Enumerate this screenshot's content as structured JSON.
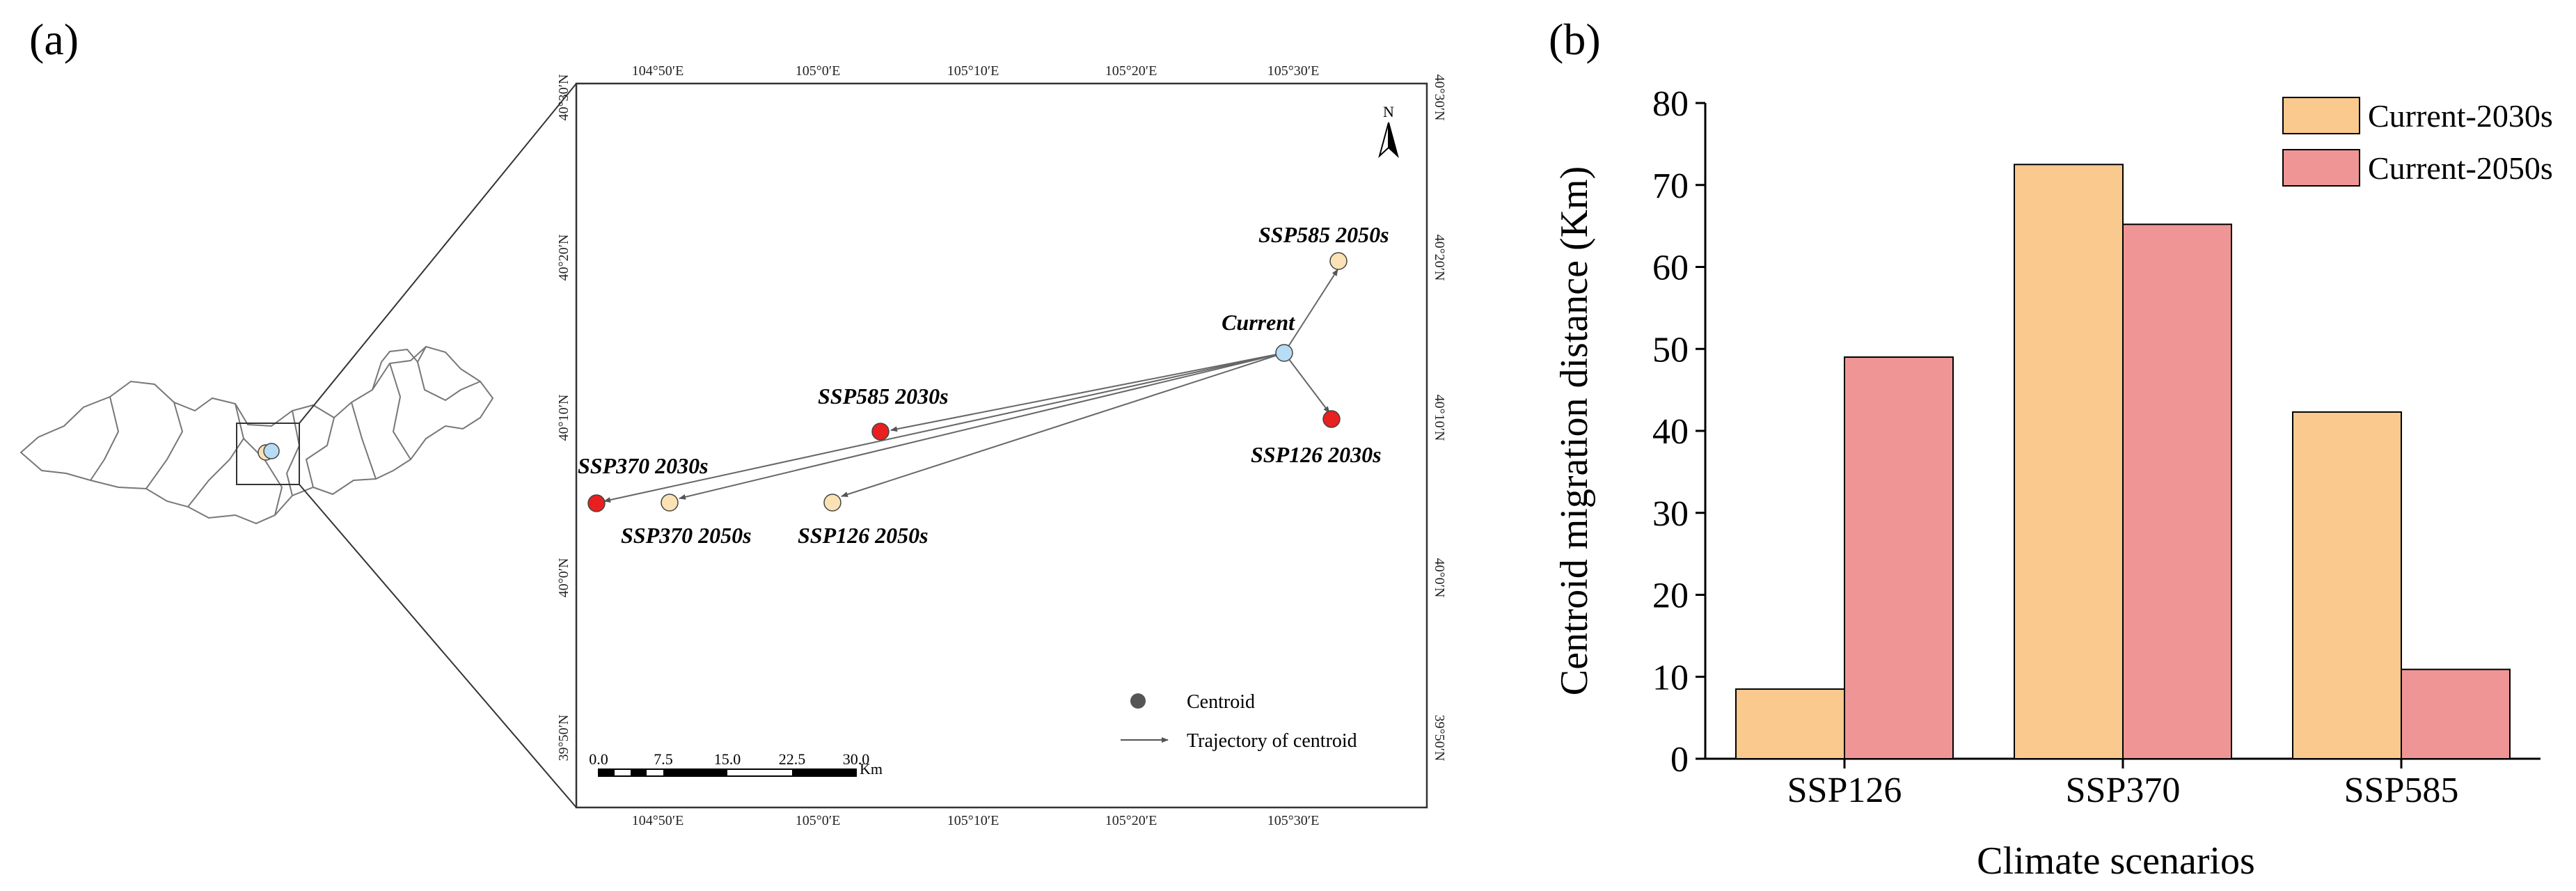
{
  "panel_a": {
    "label": "(a)",
    "north_label": "N",
    "top_ticks": [
      "104°50′E",
      "105°0′E",
      "105°10′E",
      "105°20′E",
      "105°30′E"
    ],
    "bottom_ticks": [
      "104°50′E",
      "105°0′E",
      "105°10′E",
      "105°20′E",
      "105°30′E"
    ],
    "side_ticks": [
      "40°30′N",
      "40°20′N",
      "40°10′N",
      "40°0′N",
      "39°50′N"
    ],
    "sites": [
      {
        "name": "Current",
        "kind": "current"
      },
      {
        "name": "SSP585 2050s",
        "kind": "2050s"
      },
      {
        "name": "SSP126 2030s",
        "kind": "2030s"
      },
      {
        "name": "SSP585 2030s",
        "kind": "2030s"
      },
      {
        "name": "SSP370 2030s",
        "kind": "2030s"
      },
      {
        "name": "SSP370 2050s",
        "kind": "2050s"
      },
      {
        "name": "SSP126 2050s",
        "kind": "2050s"
      }
    ],
    "legend": {
      "centroid": "Centroid",
      "trajectory": "Trajectory of centroid"
    },
    "scale_bar": {
      "ticks": [
        "0.0",
        "7.5",
        "15.0",
        "22.5",
        "30.0"
      ],
      "unit": "Km"
    },
    "colors": {
      "current": "#b7dcf5",
      "c2030": "#e8201f",
      "c2050": "#fbe2b4",
      "legend_dot": "#555555"
    }
  },
  "panel_b": {
    "label": "(b)"
  },
  "chart_data": {
    "type": "bar",
    "title": "",
    "categories": [
      "SSP126",
      "SSP370",
      "SSP585"
    ],
    "series": [
      {
        "name": "Current-2030s",
        "values": [
          8.5,
          72.5,
          42.3
        ],
        "color": "#f9c98d"
      },
      {
        "name": "Current-2050s",
        "values": [
          49.0,
          65.2,
          10.9
        ],
        "color": "#f09595"
      }
    ],
    "xlabel": "Climate scenarios",
    "ylabel": "Centroid migration distance (Km)",
    "ylim": [
      0,
      80
    ],
    "yticks": [
      0,
      10,
      20,
      30,
      40,
      50,
      60,
      70,
      80
    ],
    "legend_position": "top-right",
    "grid": false
  }
}
